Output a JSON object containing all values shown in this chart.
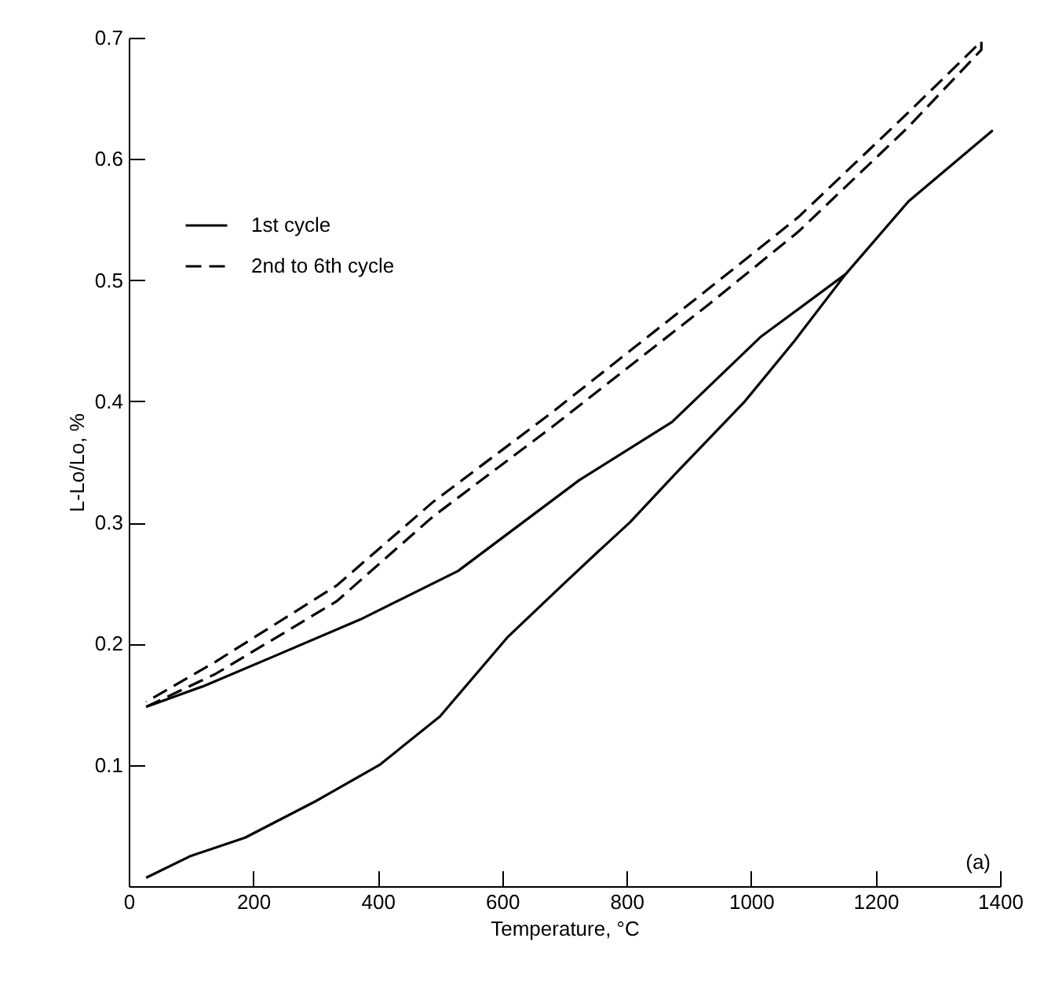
{
  "chart_data": {
    "type": "line",
    "xlabel": "Temperature, °C",
    "ylabel": "L-Lo/Lo, %",
    "xlim": [
      0,
      1400
    ],
    "xticks": [
      0,
      200,
      400,
      600,
      800,
      1000,
      1200,
      1400
    ],
    "ylim": [
      0,
      0.7
    ],
    "yticks": [
      {
        "value": 0,
        "label": null
      },
      0.1,
      0.2,
      0.3,
      0.4,
      0.5,
      0.6,
      0.7
    ],
    "grid": false,
    "legend": "top left",
    "marker": "none",
    "annotations": [
      "(a)"
    ],
    "series": [
      {
        "name": "1st cycle",
        "color": "#000000",
        "line_style": "solid",
        "x": [
          28,
          100,
          187,
          300,
          403,
          500,
          608,
          700,
          752,
          805,
          878,
          990,
          1070,
          1152,
          1253,
          1320,
          1387,
          1320,
          1253,
          1152,
          1015,
          873,
          724,
          529,
          372,
          235,
          120,
          28
        ],
        "values": [
          0.007,
          0.025,
          0.04,
          0.07,
          0.1,
          0.14,
          0.205,
          0.25,
          0.275,
          0.3,
          0.34,
          0.4,
          0.45,
          0.505,
          0.565,
          0.594,
          0.623,
          0.594,
          0.565,
          0.505,
          0.453,
          0.383,
          0.335,
          0.26,
          0.22,
          0.19,
          0.165,
          0.148
        ]
      },
      {
        "name": "2nd to 6th cycle",
        "color": "#000000",
        "line_style": "dashed",
        "x": [
          28,
          139,
          334,
          489,
          678,
          932,
          1076,
          1250,
          1370,
          1370,
          1250,
          1076,
          932,
          678,
          489,
          334,
          139,
          28
        ],
        "values": [
          0.148,
          0.175,
          0.235,
          0.305,
          0.378,
          0.48,
          0.54,
          0.625,
          0.69,
          0.697,
          0.637,
          0.552,
          0.493,
          0.39,
          0.317,
          0.248,
          0.185,
          0.152
        ]
      }
    ]
  }
}
